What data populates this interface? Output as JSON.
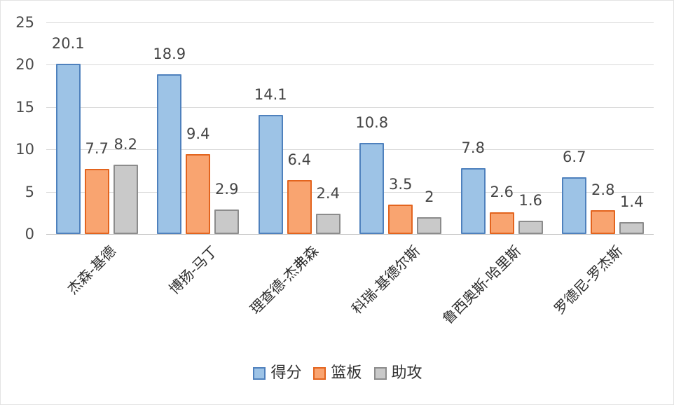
{
  "chart_data": {
    "type": "bar",
    "title": "",
    "categories": [
      "杰森-基德",
      "博扬-马丁",
      "理查德-杰弗森",
      "科瑞-基德尔斯",
      "鲁西奥斯-哈里斯",
      "罗德尼-罗杰斯"
    ],
    "series": [
      {
        "name": "得分",
        "fill": "#9DC3E6",
        "border": "#4F81BD",
        "values": [
          20.1,
          18.9,
          14.1,
          10.8,
          7.8,
          6.7
        ]
      },
      {
        "name": "篮板",
        "fill": "#F9A470",
        "border": "#E3641E",
        "values": [
          7.7,
          9.4,
          6.4,
          3.5,
          2.6,
          2.8
        ]
      },
      {
        "name": "助攻",
        "fill": "#C9C9C9",
        "border": "#8C8C8C",
        "values": [
          8.2,
          2.9,
          2.4,
          2,
          1.6,
          1.4
        ]
      }
    ],
    "xlabel": "",
    "ylabel": "",
    "ylim": [
      0,
      25
    ],
    "yticks": [
      0,
      5,
      10,
      15,
      20,
      25
    ],
    "grid": true,
    "gridline_color": "#d9d9d9",
    "label_color": "#454545",
    "legend_position": "bottom",
    "background": "#ffffff"
  }
}
